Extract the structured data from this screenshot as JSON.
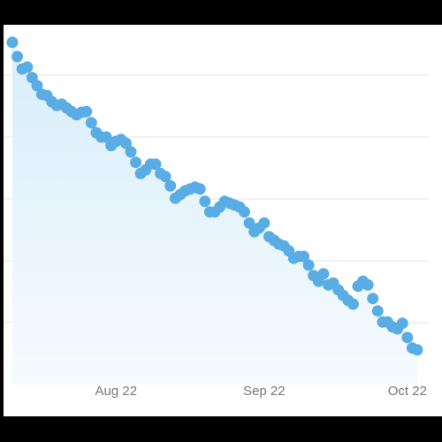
{
  "chart_data": {
    "type": "area",
    "categories": [
      null,
      null,
      null,
      null,
      null,
      null,
      null,
      null,
      null,
      null,
      null,
      null,
      null,
      null,
      null,
      null,
      null,
      null,
      null,
      null,
      null,
      "Aug 22",
      null,
      null,
      null,
      null,
      null,
      null,
      null,
      null,
      null,
      null,
      null,
      null,
      null,
      null,
      null,
      null,
      null,
      null,
      null,
      null,
      null,
      null,
      null,
      null,
      null,
      null,
      null,
      null,
      null,
      "Sep 22",
      null,
      null,
      null,
      null,
      null,
      null,
      null,
      null,
      null,
      null,
      null,
      null,
      null,
      null,
      null,
      null,
      null,
      null,
      null,
      null,
      null,
      null,
      null,
      null,
      null,
      null,
      null,
      null,
      "Oct 22",
      null,
      null
    ],
    "values": [
      55.3,
      53.0,
      51.0,
      51.3,
      49.6,
      48.3,
      46.9,
      46.7,
      45.7,
      45.1,
      45.3,
      44.7,
      44.1,
      43.6,
      44.0,
      44.1,
      42.3,
      40.7,
      40.0,
      40.0,
      38.6,
      39.3,
      39.6,
      39.0,
      37.6,
      35.9,
      34.1,
      34.7,
      35.6,
      35.6,
      34.1,
      33.6,
      32.1,
      30.1,
      30.7,
      31.3,
      31.6,
      31.9,
      31.6,
      29.6,
      27.9,
      27.9,
      28.7,
      29.6,
      29.3,
      29.0,
      28.7,
      27.9,
      26.1,
      24.7,
      25.3,
      26.1,
      23.9,
      23.3,
      22.7,
      22.4,
      21.6,
      20.4,
      20.7,
      20.7,
      19.3,
      17.6,
      16.7,
      17.9,
      16.1,
      16.4,
      15.3,
      14.4,
      13.6,
      13.0,
      15.9,
      16.7,
      16.1,
      13.9,
      11.9,
      10.1,
      10.1,
      9.3,
      9.0,
      9.9,
      7.6,
      5.9,
      5.6
    ],
    "color": "#5aade4",
    "ylim": [
      0,
      58
    ],
    "yticks": [
      10,
      20,
      30,
      40,
      50
    ],
    "grid": true
  }
}
